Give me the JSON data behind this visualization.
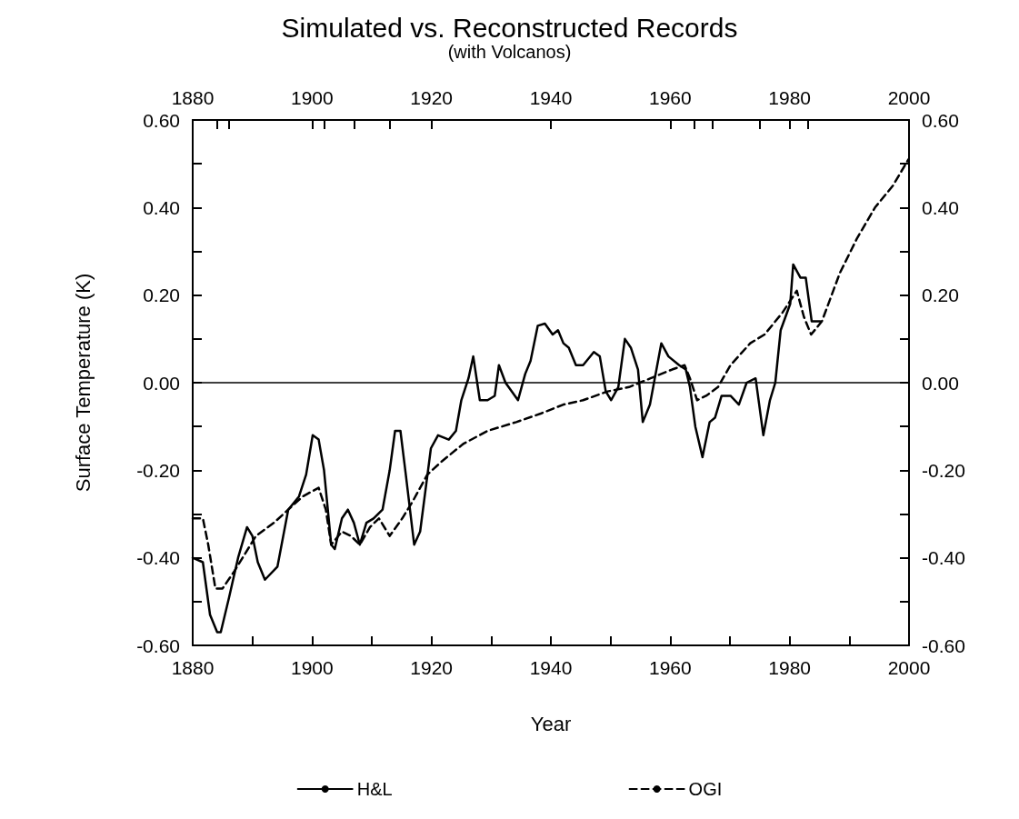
{
  "chart_data": {
    "type": "line",
    "title": "Simulated vs. Reconstructed Records",
    "subtitle": "(with Volcanos)",
    "xlabel": "Year",
    "ylabel": "Surface Temperature (K)",
    "xlim": [
      1880,
      2000
    ],
    "xticks": [
      1880,
      {
        "value": 1890,
        "label": null
      },
      1900,
      {
        "value": 1910,
        "label": null
      },
      1920,
      {
        "value": 1930,
        "label": null
      },
      1940,
      {
        "value": 1950,
        "label": null
      },
      1960,
      {
        "value": 1970,
        "label": null
      },
      1980,
      {
        "value": 1990,
        "label": null
      },
      2000
    ],
    "x2lim": [
      1880,
      2000
    ],
    "x2ticks": [
      1880,
      {
        "value": 1884,
        "label": null
      },
      {
        "value": 1886,
        "label": null
      },
      1900,
      {
        "value": 1902,
        "label": null
      },
      {
        "value": 1907,
        "label": null
      },
      {
        "value": 1913,
        "label": null
      },
      1920,
      1940,
      1960,
      {
        "value": 1964,
        "label": null
      },
      {
        "value": 1967,
        "label": null
      },
      {
        "value": 1975,
        "label": null
      },
      1980,
      {
        "value": 1983,
        "label": null
      },
      2000
    ],
    "ylim": [
      -0.6,
      0.6
    ],
    "yticks": [
      {
        "value": -0.6,
        "label": "-0.60"
      },
      {
        "value": -0.5,
        "label": null
      },
      {
        "value": -0.4,
        "label": "-0.40"
      },
      {
        "value": -0.3,
        "label": null
      },
      {
        "value": -0.2,
        "label": "-0.20"
      },
      {
        "value": -0.1,
        "label": null
      },
      {
        "value": 0,
        "label": "0.00"
      },
      {
        "value": 0.1,
        "label": null
      },
      {
        "value": 0.2,
        "label": "0.20"
      },
      {
        "value": 0.3,
        "label": null
      },
      {
        "value": 0.4,
        "label": "0.40"
      },
      {
        "value": 0.5,
        "label": null
      },
      {
        "value": 0.6,
        "label": "0.60"
      }
    ],
    "y2lim": [
      -0.6,
      0.6
    ],
    "y2ticks": [
      {
        "value": -0.6,
        "label": "-0.60"
      },
      {
        "value": -0.5,
        "label": null
      },
      {
        "value": -0.4,
        "label": "-0.40"
      },
      {
        "value": -0.3,
        "label": null
      },
      {
        "value": -0.2,
        "label": "-0.20"
      },
      {
        "value": -0.1,
        "label": null
      },
      {
        "value": 0,
        "label": "0.00"
      },
      {
        "value": 0.1,
        "label": null
      },
      {
        "value": 0.2,
        "label": "0.20"
      },
      {
        "value": 0.3,
        "label": null
      },
      {
        "value": 0.4,
        "label": "0.40"
      },
      {
        "value": 0.5,
        "label": null
      },
      {
        "value": 0.6,
        "label": "0.60"
      }
    ],
    "grid": false,
    "legend": "bottom",
    "marker": "none",
    "ref_lines": [
      {
        "axis": "y",
        "value": 0,
        "label": null,
        "color": "#000000",
        "line_style": "solid"
      }
    ],
    "series": [
      {
        "name": "H&L",
        "color": "#000000",
        "line_style": "solid",
        "x": [
          1880,
          1881.7,
          1882.9,
          1884.1,
          1884.7,
          1886.1,
          1887.6,
          1889.1,
          1890,
          1890.9,
          1892.1,
          1894.2,
          1896,
          1897.8,
          1899,
          1900.1,
          1901.1,
          1902,
          1903.2,
          1903.8,
          1905,
          1906,
          1907,
          1908,
          1909.1,
          1910.3,
          1911.8,
          1913,
          1913.9,
          1914.8,
          1915.7,
          1917.1,
          1918.1,
          1919.9,
          1921.1,
          1922.9,
          1924.1,
          1925,
          1926.2,
          1927,
          1928.1,
          1929.4,
          1930.6,
          1931.3,
          1932.4,
          1934.5,
          1935.7,
          1936.6,
          1937.8,
          1939,
          1940.3,
          1941.2,
          1942.1,
          1943,
          1944.2,
          1945.4,
          1947.2,
          1948.2,
          1949.2,
          1950.1,
          1951.3,
          1952.4,
          1953.4,
          1954.6,
          1955.4,
          1956.6,
          1958.5,
          1959.7,
          1961.5,
          1962.6,
          1963.3,
          1964.2,
          1965.4,
          1966.6,
          1967.5,
          1968.6,
          1970.1,
          1971.5,
          1972.8,
          1974.3,
          1975.6,
          1976.7,
          1977.6,
          1978.5,
          1980.1,
          1980.6,
          1981.8,
          1982.7,
          1983.7,
          1985.1
        ],
        "values": [
          -0.4,
          -0.41,
          -0.53,
          -0.57,
          -0.57,
          -0.49,
          -0.4,
          -0.33,
          -0.35,
          -0.41,
          -0.45,
          -0.42,
          -0.29,
          -0.26,
          -0.21,
          -0.12,
          -0.13,
          -0.2,
          -0.37,
          -0.38,
          -0.31,
          -0.29,
          -0.32,
          -0.37,
          -0.32,
          -0.31,
          -0.29,
          -0.2,
          -0.11,
          -0.11,
          -0.21,
          -0.37,
          -0.34,
          -0.15,
          -0.12,
          -0.13,
          -0.11,
          -0.04,
          0.01,
          0.06,
          -0.04,
          -0.04,
          -0.03,
          0.04,
          0.0,
          -0.04,
          0.02,
          0.05,
          0.13,
          0.135,
          0.11,
          0.12,
          0.09,
          0.08,
          0.04,
          0.04,
          0.07,
          0.06,
          -0.02,
          -0.04,
          -0.01,
          0.1,
          0.08,
          0.03,
          -0.09,
          -0.05,
          0.09,
          0.06,
          0.04,
          0.03,
          -0.01,
          -0.1,
          -0.17,
          -0.09,
          -0.08,
          -0.03,
          -0.03,
          -0.05,
          0.0,
          0.01,
          -0.12,
          -0.04,
          0.0,
          0.12,
          0.18,
          0.27,
          0.24,
          0.24,
          0.14,
          0.14
        ]
      },
      {
        "name": "OGI",
        "color": "#000000",
        "line_style": "dashed",
        "x": [
          1880,
          1881.7,
          1882.6,
          1883.8,
          1885,
          1887,
          1888.8,
          1890.6,
          1893.6,
          1896,
          1898.4,
          1901.1,
          1902.3,
          1903.2,
          1905,
          1906.5,
          1908,
          1909.7,
          1911.2,
          1913,
          1915.1,
          1916.9,
          1919.3,
          1921.7,
          1925.3,
          1929.4,
          1934.2,
          1938.4,
          1942.1,
          1945.4,
          1949.5,
          1953.1,
          1956.7,
          1960.3,
          1962.4,
          1963.3,
          1964.5,
          1966,
          1968,
          1970.1,
          1973.4,
          1975.8,
          1978.8,
          1981.2,
          1982.4,
          1983.6,
          1985.4,
          1988.4,
          1991.3,
          1994.3,
          1997.3,
          1999.9
        ],
        "values": [
          -0.31,
          -0.31,
          -0.37,
          -0.47,
          -0.47,
          -0.43,
          -0.39,
          -0.35,
          -0.32,
          -0.29,
          -0.26,
          -0.24,
          -0.29,
          -0.37,
          -0.34,
          -0.35,
          -0.37,
          -0.33,
          -0.31,
          -0.35,
          -0.31,
          -0.27,
          -0.21,
          -0.18,
          -0.14,
          -0.11,
          -0.09,
          -0.07,
          -0.05,
          -0.04,
          -0.02,
          -0.01,
          0.01,
          0.03,
          0.04,
          0.01,
          -0.04,
          -0.03,
          -0.01,
          0.04,
          0.09,
          0.11,
          0.16,
          0.21,
          0.15,
          0.11,
          0.14,
          0.25,
          0.33,
          0.4,
          0.45,
          0.51
        ]
      }
    ]
  }
}
